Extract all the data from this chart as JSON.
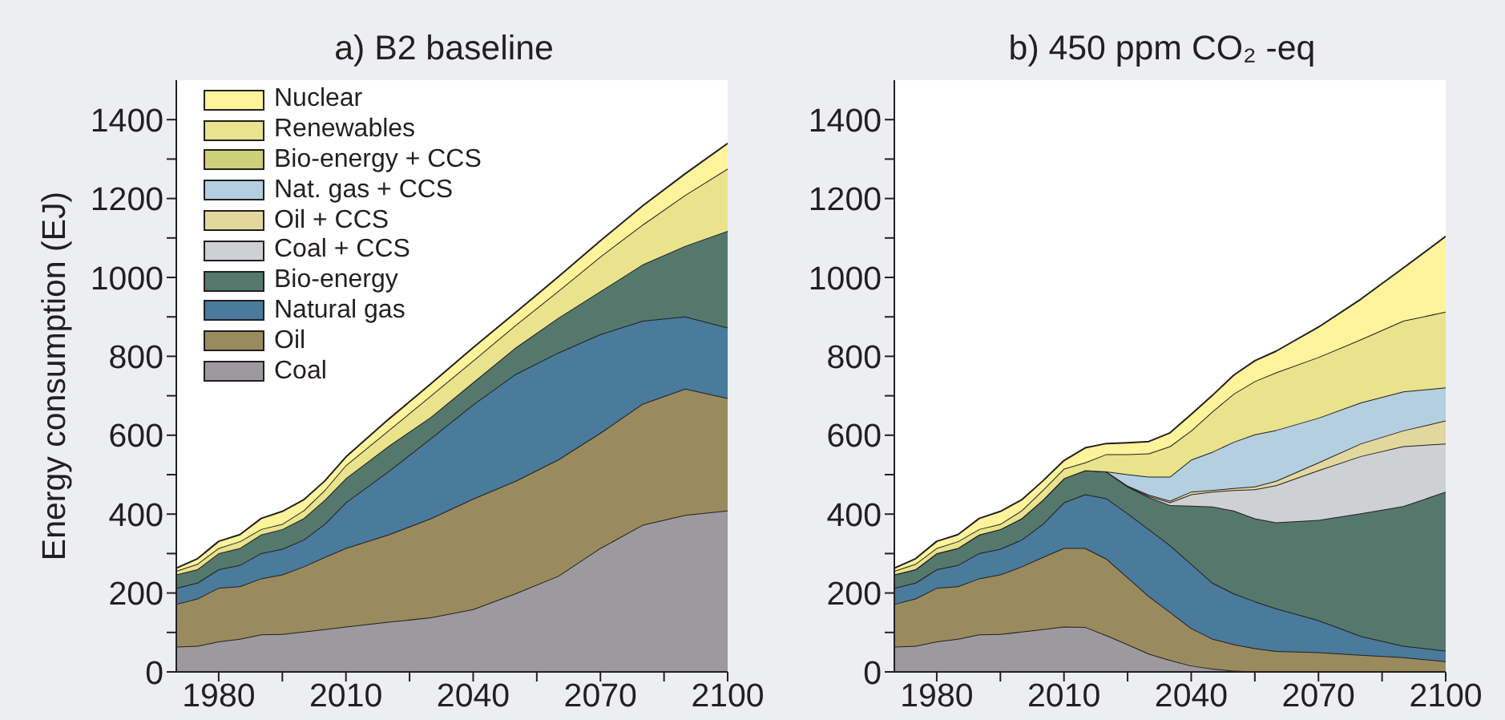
{
  "chart_data": [
    {
      "type": "area",
      "title": "a) B2 baseline",
      "ylabel": "Energy consumption (EJ)",
      "stacked": true,
      "x": [
        1970,
        1975,
        1980,
        1985,
        1990,
        1995,
        2000,
        2005,
        2010,
        2020,
        2030,
        2040,
        2050,
        2060,
        2070,
        2080,
        2090,
        2100
      ],
      "series": [
        {
          "color": "#9c9a9f",
          "values": [
            64,
            66,
            77,
            84,
            95,
            96,
            102,
            108,
            115,
            127,
            138,
            159,
            199,
            243,
            314,
            373,
            398,
            409
          ]
        },
        {
          "color": "#9a8b5f",
          "values": [
            108,
            120,
            136,
            133,
            142,
            151,
            165,
            183,
            199,
            221,
            251,
            280,
            285,
            295,
            292,
            307,
            320,
            285
          ]
        },
        {
          "color": "#4a7a9c",
          "values": [
            41,
            40,
            47,
            54,
            64,
            65,
            68,
            84,
            116,
            160,
            203,
            239,
            271,
            271,
            250,
            210,
            183,
            179
          ]
        },
        {
          "color": "#55786d",
          "values": [
            34,
            34,
            41,
            43,
            47,
            50,
            54,
            61,
            61,
            64,
            54,
            56,
            67,
            88,
            109,
            143,
            179,
            245
          ]
        },
        {
          "color": "#e8e38c",
          "values": [
            9,
            14,
            13,
            17,
            14,
            13,
            20,
            25,
            33,
            40,
            54,
            55,
            57,
            68,
            88,
            101,
            129,
            158
          ]
        },
        {
          "color": "#fff39b",
          "values": [
            7,
            13,
            17,
            17,
            27,
            32,
            27,
            23,
            21,
            28,
            30,
            33,
            32,
            36,
            40,
            48,
            54,
            64
          ]
        }
      ],
      "xlim": [
        1970,
        2100
      ],
      "xticks": [
        1980,
        {
          "value": 1995,
          "label": null
        },
        2010,
        {
          "value": 2025,
          "label": null
        },
        2040,
        {
          "value": 2055,
          "label": null
        },
        2070,
        {
          "value": 2085,
          "label": null
        },
        2100
      ],
      "ylim": [
        0,
        1500
      ],
      "yticks": [
        0,
        {
          "value": 100,
          "label": null
        },
        200,
        {
          "value": 300,
          "label": null
        },
        400,
        {
          "value": 500,
          "label": null
        },
        600,
        {
          "value": 700,
          "label": null
        },
        800,
        {
          "value": 900,
          "label": null
        },
        1000,
        {
          "value": 1100,
          "label": null
        },
        1200,
        {
          "value": 1300,
          "label": null
        },
        1400
      ]
    },
    {
      "type": "area",
      "title": "b) 450 ppm CO₂ -eq",
      "stacked": true,
      "legend": "top left",
      "x": [
        1970,
        1975,
        1980,
        1985,
        1990,
        1995,
        2000,
        2005,
        2010,
        2015,
        2020,
        2025,
        2030,
        2035,
        2040,
        2045,
        2050,
        2055,
        2060,
        2070,
        2080,
        2090,
        2100
      ],
      "series": [
        {
          "name": "Coal",
          "color": "#9c9a9f",
          "values": [
            64,
            66,
            77,
            84,
            95,
            96,
            102,
            108,
            115,
            114,
            93,
            70,
            46,
            30,
            16,
            8,
            3,
            1,
            0,
            0,
            0,
            0,
            0
          ]
        },
        {
          "name": "Oil",
          "color": "#9a8b5f",
          "values": [
            108,
            120,
            136,
            133,
            142,
            151,
            165,
            183,
            199,
            200,
            194,
            170,
            146,
            122,
            95,
            76,
            67,
            59,
            53,
            50,
            43,
            37,
            27
          ]
        },
        {
          "name": "Natural gas",
          "color": "#4a7a9c",
          "values": [
            41,
            40,
            47,
            54,
            64,
            65,
            68,
            84,
            116,
            136,
            153,
            162,
            170,
            169,
            163,
            142,
            129,
            119,
            108,
            81,
            48,
            29,
            27
          ]
        },
        {
          "name": "Bio-energy",
          "color": "#55786d",
          "values": [
            34,
            34,
            41,
            43,
            47,
            50,
            54,
            61,
            61,
            61,
            68,
            68,
            81,
            102,
            147,
            193,
            210,
            210,
            218,
            254,
            311,
            354,
            403
          ]
        },
        {
          "name": "Coal + CCS",
          "color": "#cfd0d4",
          "values": [
            0,
            0,
            0,
            0,
            0,
            0,
            0,
            0,
            0,
            0,
            0,
            1,
            3,
            7,
            29,
            38,
            52,
            74,
            94,
            126,
            145,
            152,
            122
          ]
        },
        {
          "name": "Oil + CCS",
          "color": "#e2d89e",
          "values": [
            0,
            0,
            0,
            0,
            0,
            0,
            0,
            0,
            0,
            0,
            0,
            1,
            3,
            4,
            7,
            4,
            5,
            7,
            11,
            20,
            32,
            40,
            58
          ]
        },
        {
          "name": "Nat. gas + CCS",
          "color": "#b3cfe0",
          "values": [
            0,
            0,
            0,
            0,
            0,
            0,
            0,
            0,
            0,
            0,
            0,
            29,
            46,
            61,
            81,
            97,
            117,
            132,
            129,
            113,
            104,
            99,
            84
          ]
        },
        {
          "name": "Bio-energy + CCS",
          "color": "#cdd07a",
          "values": [
            null,
            null,
            null,
            null,
            null,
            null,
            null,
            null,
            null,
            null,
            null,
            null,
            null,
            null,
            null,
            null,
            null,
            null,
            null,
            null,
            null,
            null,
            null
          ]
        },
        {
          "name": "Renewables",
          "color": "#e8e38c",
          "values": [
            9,
            14,
            13,
            17,
            14,
            13,
            20,
            25,
            24,
            20,
            44,
            51,
            59,
            77,
            74,
            102,
            122,
            135,
            146,
            154,
            160,
            179,
            192
          ]
        },
        {
          "name": "Nuclear",
          "color": "#fff39b",
          "values": [
            7,
            13,
            17,
            17,
            27,
            32,
            27,
            23,
            21,
            37,
            27,
            29,
            30,
            34,
            41,
            41,
            47,
            52,
            54,
            76,
            102,
            134,
            191
          ]
        }
      ],
      "xlim": [
        1970,
        2100
      ],
      "xticks": [
        1980,
        {
          "value": 1995,
          "label": null
        },
        2010,
        {
          "value": 2025,
          "label": null
        },
        2040,
        {
          "value": 2055,
          "label": null
        },
        2070,
        {
          "value": 2085,
          "label": null
        },
        2100
      ],
      "ylim": [
        0,
        1500
      ],
      "yticks": [
        0,
        {
          "value": 100,
          "label": null
        },
        200,
        {
          "value": 300,
          "label": null
        },
        400,
        {
          "value": 500,
          "label": null
        },
        600,
        {
          "value": 700,
          "label": null
        },
        800,
        {
          "value": 900,
          "label": null
        },
        1000,
        {
          "value": 1100,
          "label": null
        },
        1200,
        {
          "value": 1300,
          "label": null
        },
        1400
      ]
    }
  ]
}
